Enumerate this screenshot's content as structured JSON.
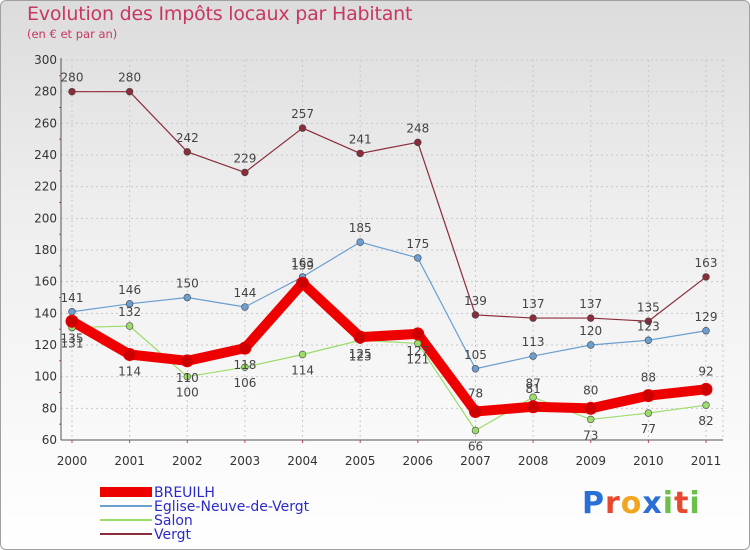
{
  "title": "Evolution des Impôts locaux par Habitant",
  "subtitle": "(en € et par an)",
  "logo": {
    "letters": [
      "P",
      "r",
      "o",
      "x",
      "i",
      "t",
      "i"
    ],
    "colors": [
      "#2a6fd6",
      "#e8482e",
      "#f2a51f",
      "#2a6fd6",
      "#6cc04a",
      "#e8482e",
      "#6cc04a"
    ]
  },
  "chart_data": {
    "type": "line",
    "x": [
      "2000",
      "2001",
      "2002",
      "2003",
      "2004",
      "2005",
      "2006",
      "2007",
      "2008",
      "2009",
      "2010",
      "2011"
    ],
    "ylim": [
      60,
      300
    ],
    "yticks": [
      "60",
      "80",
      "100",
      "120",
      "140",
      "160",
      "180",
      "200",
      "220",
      "240",
      "260",
      "280",
      "300"
    ],
    "grid": true,
    "legend_position": "bottom-left",
    "series": [
      {
        "name": "BREUILH",
        "color": "#ee0000",
        "values": [
          135,
          114,
          110,
          118,
          159,
          125,
          127,
          78,
          81,
          80,
          88,
          92
        ],
        "labels": [
          "135",
          "114",
          "110",
          "118",
          "159",
          "125",
          "127",
          "78",
          "81",
          "80",
          "88",
          "92"
        ]
      },
      {
        "name": "Eglise-Neuve-de-Vergt",
        "color": "#6a9fd0",
        "values": [
          141,
          146,
          150,
          144,
          163,
          185,
          175,
          105,
          113,
          120,
          123,
          129
        ],
        "labels": [
          "141",
          "146",
          "150",
          "144",
          "163",
          "185",
          "175",
          "105",
          "113",
          "120",
          "123",
          "129"
        ]
      },
      {
        "name": "Salon",
        "color": "#9bdc6a",
        "values": [
          131,
          132,
          100,
          106,
          114,
          123,
          121,
          66,
          87,
          73,
          77,
          82
        ],
        "labels": [
          "131",
          "132",
          "100",
          "106",
          "114",
          "123",
          "121",
          "66",
          "87",
          "73",
          "77",
          "82"
        ]
      },
      {
        "name": "Vergt",
        "color": "#8b2c3a",
        "values": [
          280,
          280,
          242,
          229,
          257,
          241,
          248,
          139,
          137,
          137,
          135,
          163
        ],
        "labels": [
          "280",
          "280",
          "242",
          "229",
          "257",
          "241",
          "248",
          "139",
          "137",
          "137",
          "135",
          "163"
        ]
      }
    ]
  }
}
